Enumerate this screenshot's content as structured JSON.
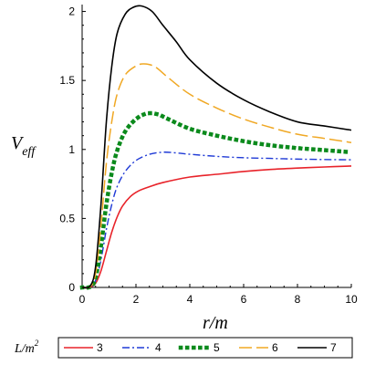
{
  "chart_data": {
    "type": "line",
    "ylabel_main": "V",
    "ylabel_sub": "eff",
    "xlabel": "r/m",
    "legend_title_main": "L/m",
    "legend_title_sup": "2",
    "xlim": [
      0,
      10
    ],
    "ylim": [
      0,
      2.05
    ],
    "x_ticks": [
      "0",
      "2",
      "4",
      "6",
      "8",
      "10"
    ],
    "y_ticks": [
      "0",
      "0.5",
      "1",
      "1.5",
      "2"
    ],
    "legend_position": "bottom",
    "grid": false,
    "series": [
      {
        "name": "3",
        "color": "#e8232a",
        "dash": "solid",
        "points": [
          [
            0,
            0
          ],
          [
            0.3,
            0.004
          ],
          [
            0.5,
            0.03
          ],
          [
            0.7,
            0.12
          ],
          [
            0.9,
            0.26
          ],
          [
            1.1,
            0.4
          ],
          [
            1.3,
            0.51
          ],
          [
            1.5,
            0.59
          ],
          [
            1.8,
            0.66
          ],
          [
            2.1,
            0.7
          ],
          [
            2.5,
            0.73
          ],
          [
            3,
            0.76
          ],
          [
            4,
            0.8
          ],
          [
            5,
            0.82
          ],
          [
            6,
            0.84
          ],
          [
            7,
            0.855
          ],
          [
            8,
            0.865
          ],
          [
            9,
            0.873
          ],
          [
            10,
            0.88
          ]
        ]
      },
      {
        "name": "4",
        "color": "#1f3ad6",
        "dash": "dashdot",
        "points": [
          [
            0,
            0
          ],
          [
            0.3,
            0.005
          ],
          [
            0.5,
            0.05
          ],
          [
            0.7,
            0.2
          ],
          [
            0.9,
            0.42
          ],
          [
            1.1,
            0.6
          ],
          [
            1.3,
            0.73
          ],
          [
            1.6,
            0.84
          ],
          [
            2,
            0.92
          ],
          [
            2.5,
            0.965
          ],
          [
            3,
            0.98
          ],
          [
            3.5,
            0.975
          ],
          [
            4,
            0.965
          ],
          [
            5,
            0.95
          ],
          [
            6,
            0.94
          ],
          [
            7,
            0.935
          ],
          [
            8,
            0.93
          ],
          [
            9,
            0.927
          ],
          [
            10,
            0.925
          ]
        ]
      },
      {
        "name": "5",
        "color": "#0b8a1c",
        "dash": "dotted",
        "points": [
          [
            0,
            0
          ],
          [
            0.3,
            0.005
          ],
          [
            0.5,
            0.07
          ],
          [
            0.7,
            0.3
          ],
          [
            0.9,
            0.6
          ],
          [
            1.1,
            0.83
          ],
          [
            1.3,
            0.99
          ],
          [
            1.6,
            1.13
          ],
          [
            2,
            1.22
          ],
          [
            2.4,
            1.26
          ],
          [
            2.8,
            1.255
          ],
          [
            3.2,
            1.22
          ],
          [
            4,
            1.15
          ],
          [
            5,
            1.1
          ],
          [
            6,
            1.06
          ],
          [
            7,
            1.03
          ],
          [
            8,
            1.01
          ],
          [
            9,
            0.995
          ],
          [
            10,
            0.98
          ]
        ]
      },
      {
        "name": "6",
        "color": "#f0a824",
        "dash": "longdash",
        "points": [
          [
            0,
            0
          ],
          [
            0.3,
            0.005
          ],
          [
            0.5,
            0.1
          ],
          [
            0.7,
            0.45
          ],
          [
            0.9,
            0.9
          ],
          [
            1.1,
            1.2
          ],
          [
            1.3,
            1.4
          ],
          [
            1.6,
            1.54
          ],
          [
            2,
            1.605
          ],
          [
            2.3,
            1.62
          ],
          [
            2.7,
            1.6
          ],
          [
            3.2,
            1.52
          ],
          [
            4,
            1.4
          ],
          [
            5,
            1.3
          ],
          [
            6,
            1.22
          ],
          [
            7,
            1.16
          ],
          [
            8,
            1.11
          ],
          [
            9,
            1.08
          ],
          [
            10,
            1.05
          ]
        ]
      },
      {
        "name": "7",
        "color": "#000000",
        "dash": "solid",
        "points": [
          [
            0,
            0
          ],
          [
            0.3,
            0.01
          ],
          [
            0.5,
            0.15
          ],
          [
            0.7,
            0.6
          ],
          [
            0.9,
            1.2
          ],
          [
            1.1,
            1.6
          ],
          [
            1.3,
            1.84
          ],
          [
            1.6,
            1.98
          ],
          [
            1.9,
            2.03
          ],
          [
            2.2,
            2.04
          ],
          [
            2.6,
            2.0
          ],
          [
            3,
            1.9
          ],
          [
            3.5,
            1.78
          ],
          [
            4,
            1.65
          ],
          [
            5,
            1.48
          ],
          [
            6,
            1.36
          ],
          [
            7,
            1.27
          ],
          [
            8,
            1.2
          ],
          [
            9,
            1.17
          ],
          [
            10,
            1.14
          ]
        ]
      }
    ]
  }
}
